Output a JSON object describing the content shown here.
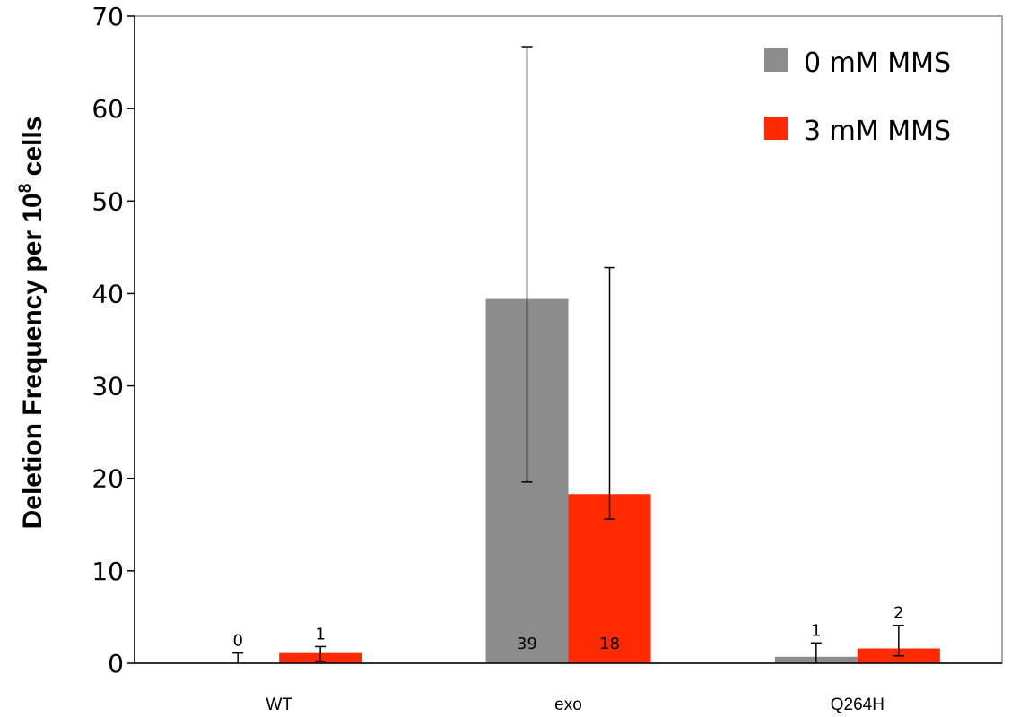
{
  "chart_data": {
    "type": "bar",
    "categories": [
      "WT",
      "exo",
      "Q264H"
    ],
    "series": [
      {
        "name": "0 mM MMS",
        "color": "#8c8c8c",
        "values": [
          0,
          39.4,
          0.7
        ],
        "error_low": [
          0,
          19.6,
          0
        ],
        "error_high": [
          1.1,
          66.7,
          2.2
        ],
        "data_labels": [
          "0",
          "39",
          "1"
        ]
      },
      {
        "name": "3 mM MMS",
        "color": "#ff2a00",
        "values": [
          1.1,
          18.3,
          1.6
        ],
        "error_low": [
          0.2,
          15.6,
          0.8
        ],
        "error_high": [
          1.8,
          42.8,
          4.1
        ],
        "data_labels": [
          "1",
          "18",
          "2"
        ]
      }
    ],
    "ylabel": "Deletion Frequency per 10",
    "ylabel_superscript": "8",
    "ylabel_suffix": " cells",
    "ylim": [
      0,
      70
    ],
    "yticks": [
      0,
      10,
      20,
      30,
      40,
      50,
      60,
      70
    ],
    "grid": false,
    "legend_position": "top-right"
  }
}
